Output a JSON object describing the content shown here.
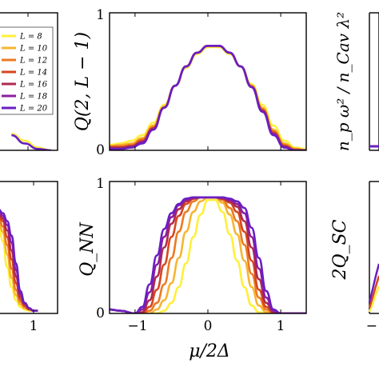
{
  "chart_data": [
    {
      "type": "line",
      "panel": "top-left (partial)",
      "xlabel": "",
      "ylabel": "",
      "legend": {
        "placement": "top-left",
        "entries": [
          "L = 8",
          "L = 10",
          "L = 12",
          "L = 14",
          "L = 16",
          "L = 18",
          "L = 20"
        ]
      },
      "x": [
        0.3,
        0.6,
        0.9,
        1.2
      ],
      "series": [
        {
          "name": "L = 8",
          "values": [
            0.12,
            0.07,
            0.02,
            0.0
          ]
        },
        {
          "name": "L = 20",
          "values": [
            0.11,
            0.05,
            0.01,
            0.0
          ]
        }
      ],
      "xlim": [
        0.0,
        1.35
      ],
      "ylim": [
        0,
        1
      ]
    },
    {
      "type": "line",
      "panel": "top-middle",
      "xlabel": "",
      "ylabel": "Q(2, L − 1)",
      "ytick_labels": [
        "0",
        "1"
      ],
      "xlim": [
        -1.35,
        1.35
      ],
      "ylim": [
        0,
        1
      ],
      "x": [
        -1.35,
        -1.2,
        -1.05,
        -0.9,
        -0.75,
        -0.6,
        -0.45,
        -0.3,
        -0.15,
        0.0,
        0.15,
        0.3,
        0.45,
        0.6,
        0.75,
        0.9,
        1.05,
        1.2,
        1.35
      ],
      "series": [
        {
          "name": "L = 8",
          "values": [
            0.04,
            0.05,
            0.07,
            0.11,
            0.2,
            0.33,
            0.47,
            0.6,
            0.7,
            0.75,
            0.75,
            0.7,
            0.61,
            0.48,
            0.33,
            0.18,
            0.07,
            0.02,
            0.01
          ]
        },
        {
          "name": "L = 10",
          "values": [
            0.03,
            0.04,
            0.05,
            0.09,
            0.18,
            0.32,
            0.47,
            0.61,
            0.71,
            0.76,
            0.76,
            0.71,
            0.61,
            0.47,
            0.31,
            0.15,
            0.05,
            0.01,
            0.0
          ]
        },
        {
          "name": "L = 12",
          "values": [
            0.03,
            0.03,
            0.04,
            0.08,
            0.17,
            0.31,
            0.47,
            0.61,
            0.71,
            0.76,
            0.76,
            0.71,
            0.61,
            0.47,
            0.3,
            0.14,
            0.04,
            0.01,
            0.0
          ]
        },
        {
          "name": "L = 14",
          "values": [
            0.02,
            0.02,
            0.03,
            0.07,
            0.16,
            0.31,
            0.47,
            0.61,
            0.71,
            0.76,
            0.76,
            0.71,
            0.61,
            0.46,
            0.29,
            0.13,
            0.03,
            0.0,
            0.0
          ]
        },
        {
          "name": "L = 16",
          "values": [
            0.02,
            0.02,
            0.03,
            0.06,
            0.16,
            0.31,
            0.47,
            0.61,
            0.71,
            0.76,
            0.76,
            0.71,
            0.61,
            0.46,
            0.29,
            0.12,
            0.03,
            0.0,
            0.0
          ]
        },
        {
          "name": "L = 18",
          "values": [
            0.01,
            0.01,
            0.02,
            0.06,
            0.15,
            0.31,
            0.47,
            0.61,
            0.71,
            0.76,
            0.76,
            0.71,
            0.61,
            0.46,
            0.28,
            0.12,
            0.02,
            0.0,
            0.0
          ]
        },
        {
          "name": "L = 20",
          "values": [
            0.01,
            0.01,
            0.02,
            0.05,
            0.15,
            0.31,
            0.47,
            0.61,
            0.71,
            0.76,
            0.76,
            0.71,
            0.61,
            0.46,
            0.28,
            0.11,
            0.02,
            0.0,
            0.0
          ]
        }
      ]
    },
    {
      "type": "line",
      "panel": "top-right (partial)",
      "xlabel": "",
      "ylabel": "n_p ω² / n_Cav λ²"
    },
    {
      "type": "line",
      "panel": "bottom-left (partial)",
      "xlabel": "",
      "ylabel": "",
      "xtick_labels": [
        "1"
      ],
      "xlim": [
        0.0,
        1.35
      ],
      "ylim": [
        0,
        1
      ],
      "x": [
        0.0,
        0.1,
        0.2,
        0.3,
        0.4,
        0.5,
        0.6,
        0.7,
        0.8,
        0.9
      ],
      "series": [
        {
          "name": "L = 8",
          "values": [
            0.7,
            0.55,
            0.35,
            0.2,
            0.1,
            0.05,
            0.03,
            0.02,
            0.02,
            0.02
          ]
        },
        {
          "name": "L = 10",
          "values": [
            0.72,
            0.62,
            0.45,
            0.27,
            0.14,
            0.07,
            0.04,
            0.03,
            0.02,
            0.02
          ]
        },
        {
          "name": "L = 12",
          "values": [
            0.74,
            0.66,
            0.52,
            0.34,
            0.18,
            0.09,
            0.05,
            0.03,
            0.02,
            0.02
          ]
        },
        {
          "name": "L = 14",
          "values": [
            0.76,
            0.7,
            0.58,
            0.41,
            0.23,
            0.11,
            0.06,
            0.03,
            0.02,
            0.02
          ]
        },
        {
          "name": "L = 16",
          "values": [
            0.77,
            0.72,
            0.63,
            0.48,
            0.28,
            0.13,
            0.07,
            0.04,
            0.02,
            0.02
          ]
        },
        {
          "name": "L = 18",
          "values": [
            0.78,
            0.74,
            0.67,
            0.54,
            0.33,
            0.15,
            0.08,
            0.04,
            0.02,
            0.02
          ]
        },
        {
          "name": "L = 20",
          "values": [
            0.79,
            0.76,
            0.7,
            0.59,
            0.38,
            0.17,
            0.08,
            0.04,
            0.02,
            0.02
          ]
        }
      ]
    },
    {
      "type": "line",
      "panel": "bottom-middle",
      "xlabel": "μ/2Δ",
      "ylabel": "Q_NN",
      "xtick_labels": [
        "−1",
        "0",
        "1"
      ],
      "ytick_labels": [
        "0",
        "1"
      ],
      "xlim": [
        -1.35,
        1.35
      ],
      "ylim": [
        0,
        1
      ],
      "x": [
        -1.35,
        -1.2,
        -1.0,
        -0.9,
        -0.8,
        -0.7,
        -0.6,
        -0.5,
        -0.4,
        -0.3,
        -0.2,
        -0.1,
        0.0,
        0.1,
        0.2,
        0.3,
        0.4,
        0.5,
        0.6,
        0.7,
        0.8,
        0.9,
        1.0,
        1.2,
        1.35
      ],
      "series": [
        {
          "name": "L = 8",
          "values": [
            0.03,
            0.02,
            0.0,
            0.0,
            0.0,
            0.0,
            0.02,
            0.08,
            0.2,
            0.38,
            0.58,
            0.75,
            0.86,
            0.86,
            0.77,
            0.6,
            0.4,
            0.2,
            0.06,
            0.01,
            0.0,
            0.0,
            0.0,
            0.0,
            0.0
          ]
        },
        {
          "name": "L = 10",
          "values": [
            0.03,
            0.02,
            0.0,
            0.0,
            0.0,
            0.03,
            0.1,
            0.23,
            0.42,
            0.62,
            0.77,
            0.85,
            0.88,
            0.88,
            0.84,
            0.75,
            0.6,
            0.4,
            0.2,
            0.06,
            0.01,
            0.0,
            0.0,
            0.0,
            0.0
          ]
        },
        {
          "name": "L = 12",
          "values": [
            0.03,
            0.02,
            0.0,
            0.0,
            0.02,
            0.08,
            0.22,
            0.42,
            0.62,
            0.77,
            0.85,
            0.88,
            0.88,
            0.88,
            0.86,
            0.8,
            0.7,
            0.52,
            0.3,
            0.12,
            0.03,
            0.0,
            0.0,
            0.0,
            0.0
          ]
        },
        {
          "name": "L = 14",
          "values": [
            0.03,
            0.02,
            0.0,
            0.0,
            0.05,
            0.18,
            0.37,
            0.58,
            0.74,
            0.83,
            0.87,
            0.88,
            0.88,
            0.88,
            0.87,
            0.84,
            0.77,
            0.62,
            0.4,
            0.18,
            0.05,
            0.01,
            0.0,
            0.0,
            0.0
          ]
        },
        {
          "name": "L = 16",
          "values": [
            0.03,
            0.02,
            0.0,
            0.01,
            0.1,
            0.28,
            0.5,
            0.68,
            0.79,
            0.85,
            0.87,
            0.88,
            0.88,
            0.88,
            0.87,
            0.85,
            0.81,
            0.7,
            0.5,
            0.26,
            0.08,
            0.01,
            0.0,
            0.0,
            0.0
          ]
        },
        {
          "name": "L = 18",
          "values": [
            0.03,
            0.02,
            0.0,
            0.03,
            0.16,
            0.37,
            0.58,
            0.73,
            0.82,
            0.86,
            0.88,
            0.88,
            0.88,
            0.88,
            0.88,
            0.86,
            0.83,
            0.76,
            0.58,
            0.34,
            0.12,
            0.02,
            0.0,
            0.0,
            0.0
          ]
        },
        {
          "name": "L = 20",
          "values": [
            0.03,
            0.02,
            0.0,
            0.05,
            0.22,
            0.44,
            0.64,
            0.76,
            0.83,
            0.87,
            0.88,
            0.88,
            0.88,
            0.88,
            0.88,
            0.87,
            0.85,
            0.8,
            0.65,
            0.42,
            0.17,
            0.03,
            0.0,
            0.0,
            0.0
          ]
        }
      ]
    },
    {
      "type": "line",
      "panel": "bottom-right (partial)",
      "xlabel": "",
      "ylabel": "2Q_SC",
      "xtick_labels": [
        "−"
      ]
    }
  ],
  "colors": {
    "L8": "#ffef3a",
    "L10": "#f7b530",
    "L12": "#ec7a22",
    "L14": "#d7461e",
    "L16": "#ae2a4e",
    "L18": "#8c1ea0",
    "L20": "#6a1fc2"
  }
}
